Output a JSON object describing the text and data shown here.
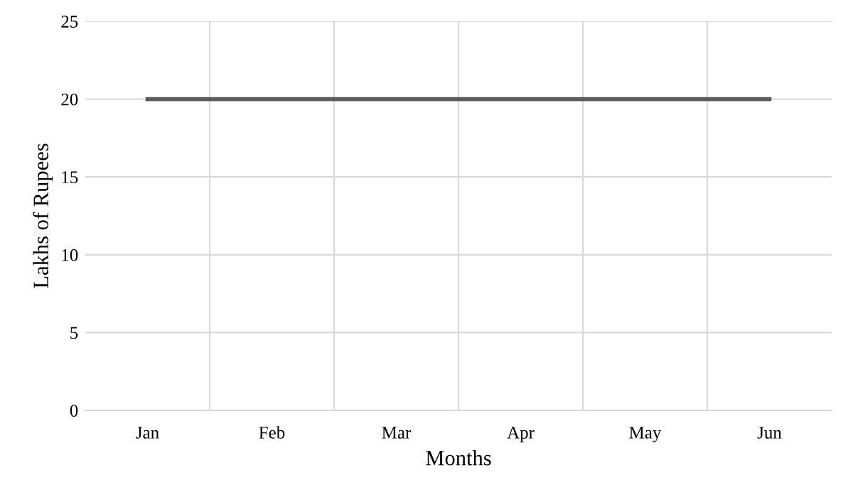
{
  "chart_data": {
    "type": "line",
    "xlabel": "Months",
    "ylabel": "Lakhs of Rupees",
    "categories": [
      "Jan",
      "Feb",
      "Mar",
      "Apr",
      "May",
      "Jun"
    ],
    "series": [
      {
        "color": "#5a5a5a",
        "values": [
          20,
          20,
          20,
          20,
          20,
          20
        ]
      }
    ],
    "ylim": [
      0,
      25
    ],
    "yticks": [
      0,
      5,
      10,
      15,
      20,
      25
    ],
    "grid": true,
    "legend": false,
    "marker": "none",
    "line_style": "solid"
  }
}
